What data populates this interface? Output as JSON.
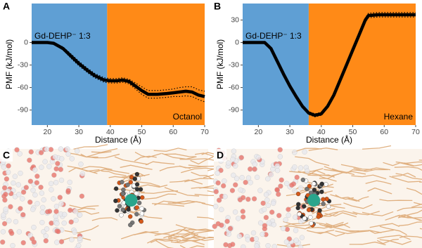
{
  "chart_data": [
    {
      "type": "line",
      "panel_label": "A",
      "annotation": "Gd-DEHP⁻ 1:3",
      "xlabel": "Distance (Å)",
      "ylabel": "PMF (kJ/mol)",
      "xlim": [
        15,
        70
      ],
      "xticks": [
        20,
        30,
        40,
        50,
        60,
        70
      ],
      "ylim": [
        -110,
        52
      ],
      "yticks": [
        -90,
        -60,
        -30,
        0
      ],
      "regions": [
        {
          "xmin": 15,
          "xmax": 39,
          "color": "#5f9fd4"
        },
        {
          "xmin": 39,
          "xmax": 70,
          "color": "#ff8a17",
          "label": "Octanol"
        }
      ],
      "x": [
        15,
        18,
        20,
        22,
        25,
        28,
        30,
        33,
        35,
        38,
        40,
        42,
        44,
        46,
        48,
        50,
        52,
        55,
        58,
        60,
        62,
        64,
        66,
        68,
        70
      ],
      "series": [
        {
          "color": "#000000",
          "style": "solid",
          "values": [
            0,
            0,
            0,
            -1,
            -8,
            -20,
            -28,
            -38,
            -44,
            -50,
            -51,
            -51,
            -50,
            -52,
            -58,
            -64,
            -69,
            -69,
            -68,
            -67,
            -66,
            -65,
            -66,
            -70,
            -72
          ]
        },
        {
          "color": "#000000",
          "style": "dotted",
          "values": [
            1,
            1,
            1,
            0,
            -6,
            -17,
            -25,
            -35,
            -41,
            -47,
            -48,
            -48,
            -47,
            -49,
            -54,
            -59,
            -64,
            -64,
            -63,
            -62,
            -60,
            -59,
            -59,
            -63,
            -65
          ]
        },
        {
          "color": "#000000",
          "style": "dotted",
          "values": [
            -1,
            -1,
            -1,
            -2,
            -10,
            -23,
            -31,
            -41,
            -47,
            -53,
            -54,
            -54,
            -53,
            -55,
            -62,
            -69,
            -74,
            -74,
            -73,
            -72,
            -72,
            -71,
            -72,
            -76,
            -79
          ]
        }
      ]
    },
    {
      "type": "line",
      "panel_label": "B",
      "annotation": "Gd-DEHP⁻ 1:3",
      "xlabel": "Distance (Å)",
      "ylabel": "PMF (kJ/mol)",
      "xlim": [
        15,
        70
      ],
      "xticks": [
        20,
        30,
        40,
        50,
        60,
        70
      ],
      "ylim": [
        -110,
        52
      ],
      "yticks": [
        -90,
        -60,
        -30,
        0,
        30
      ],
      "regions": [
        {
          "xmin": 15,
          "xmax": 36,
          "color": "#5f9fd4"
        },
        {
          "xmin": 36,
          "xmax": 70,
          "color": "#ff8a17",
          "label": "Hexane"
        }
      ],
      "x": [
        15,
        18,
        20,
        22,
        24,
        26,
        28,
        30,
        32,
        34,
        36,
        38,
        40,
        42,
        44,
        46,
        48,
        50,
        52,
        54,
        55,
        58,
        60,
        65,
        70
      ],
      "series": [
        {
          "color": "#000000",
          "style": "solid",
          "values": [
            0,
            0,
            0,
            0,
            -8,
            -25,
            -42,
            -58,
            -72,
            -85,
            -94,
            -97,
            -95,
            -85,
            -70,
            -50,
            -30,
            -10,
            10,
            30,
            36,
            37,
            37,
            37,
            37
          ]
        },
        {
          "color": "#000000",
          "style": "dotted",
          "values": [
            1,
            1,
            1,
            1,
            -6,
            -23,
            -40,
            -56,
            -70,
            -83,
            -92,
            -95,
            -93,
            -83,
            -68,
            -48,
            -28,
            -8,
            12,
            33,
            39,
            40,
            40,
            40,
            40
          ]
        },
        {
          "color": "#000000",
          "style": "dotted",
          "values": [
            -1,
            -1,
            -1,
            -1,
            -10,
            -27,
            -44,
            -60,
            -74,
            -87,
            -96,
            -99,
            -97,
            -87,
            -72,
            -52,
            -32,
            -12,
            8,
            27,
            33,
            34,
            34,
            34,
            34
          ]
        }
      ]
    }
  ],
  "panels": [
    {
      "label": "C"
    },
    {
      "label": "D"
    }
  ]
}
